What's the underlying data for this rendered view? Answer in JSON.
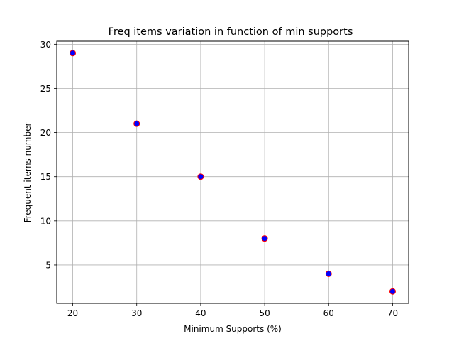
{
  "chart_data": {
    "type": "scatter",
    "title": "Freq items variation in function of min supports",
    "xlabel": "Minimum Supports (%)",
    "ylabel": "Frequent items number",
    "x": [
      20,
      30,
      40,
      50,
      60,
      70
    ],
    "y": [
      29,
      21,
      15,
      8,
      4,
      2
    ],
    "xlim": [
      17.5,
      72.5
    ],
    "ylim": [
      0.65,
      30.35
    ],
    "xticks": [
      20,
      30,
      40,
      50,
      60,
      70
    ],
    "yticks": [
      5,
      10,
      15,
      20,
      25,
      30
    ],
    "grid": true,
    "marker_face_color": "#0000ff",
    "marker_edge_color": "#ff0000",
    "grid_color": "#b0b0b0"
  }
}
